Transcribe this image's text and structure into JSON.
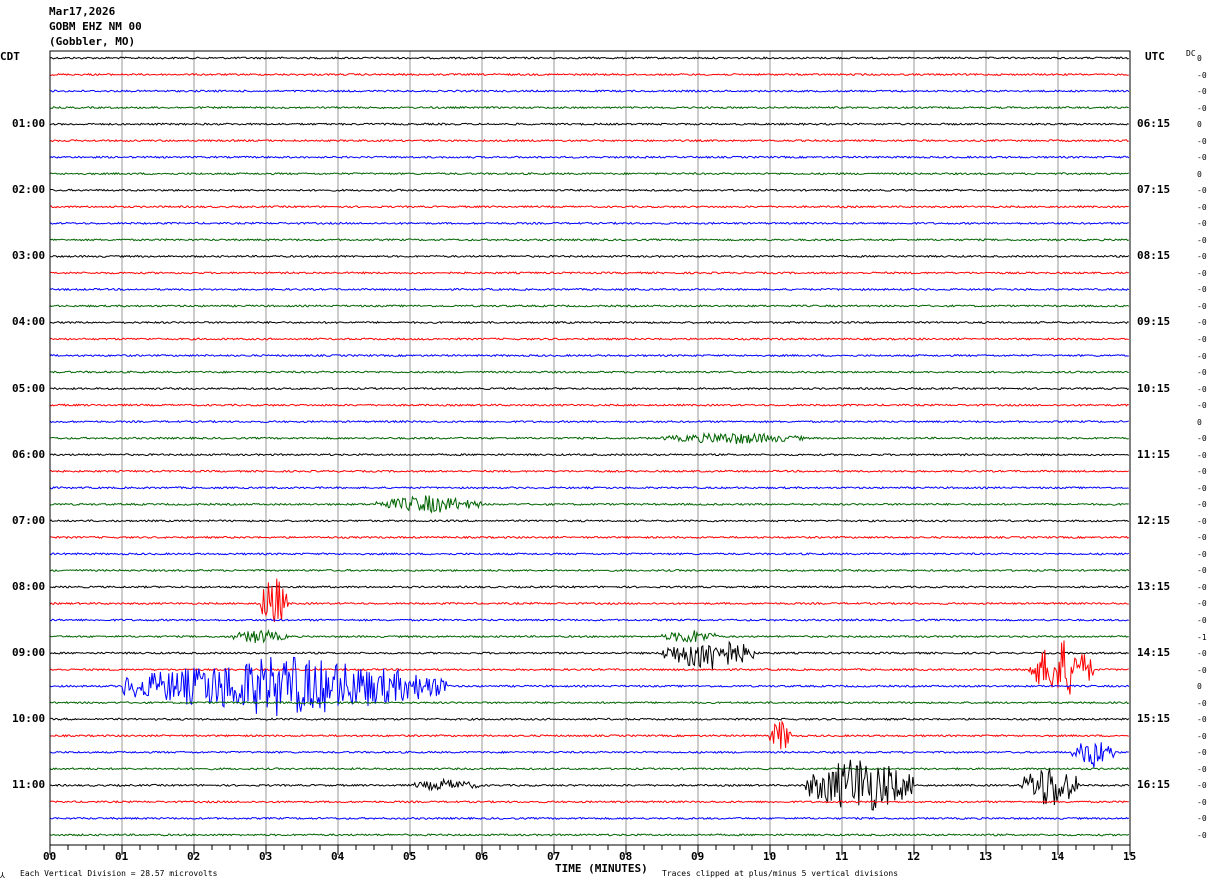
{
  "header": {
    "date": "Mar17,2026",
    "station": "GOBM EHZ NM 00",
    "location": "(Gobbler, MO)"
  },
  "left_label": "CDT",
  "right_label": "UTC",
  "dc_label": "DC",
  "footer": {
    "scale": "Each Vertical Division =   28.57 microvolts",
    "xlabel": "TIME (MINUTES)",
    "clip": "Traces clipped at plus/minus 5 vertical divisions"
  },
  "colors": {
    "cycle": [
      "#000000",
      "#ff0000",
      "#0000ff",
      "#006400"
    ]
  },
  "chart_data": {
    "type": "line",
    "title": "GOBM EHZ NM 00",
    "xlabel": "TIME (MINUTES)",
    "xlim": [
      0,
      15
    ],
    "x_ticks": [
      "00",
      "01",
      "02",
      "03",
      "04",
      "05",
      "06",
      "07",
      "08",
      "09",
      "10",
      "11",
      "12",
      "13",
      "14",
      "15"
    ],
    "trace_count": 48,
    "minutes_per_trace": 15,
    "left_hour_labels": [
      "01:00",
      "02:00",
      "03:00",
      "04:00",
      "05:00",
      "06:00",
      "07:00",
      "08:00",
      "09:00",
      "10:00",
      "11:00"
    ],
    "right_hour_labels": [
      "06:15",
      "07:15",
      "08:15",
      "09:15",
      "10:15",
      "11:15",
      "12:15",
      "13:15",
      "14:15",
      "15:15",
      "16:15"
    ],
    "hour_label_trace_index": [
      4,
      8,
      12,
      16,
      20,
      24,
      28,
      32,
      36,
      40,
      44
    ],
    "dc_offsets": [
      "0",
      "-0",
      "-0",
      "-0",
      "0",
      "-0",
      "-0",
      "0",
      "-0",
      "-0",
      "-0",
      "-0",
      "-0",
      "-0",
      "-0",
      "-0",
      "-0",
      "-0",
      "-0",
      "-0",
      "-0",
      "-0",
      "0",
      "-0",
      "-0",
      "-0",
      "-0",
      "-0",
      "-0",
      "-0",
      "-0",
      "-0",
      "-0",
      "-0",
      "-0",
      "-1",
      "-0",
      "-0",
      "0",
      "-0",
      "-0",
      "-0",
      "-0",
      "-0",
      "-0",
      "-0",
      "-0",
      "-0"
    ],
    "events": [
      {
        "trace": 27,
        "start": 4.5,
        "end": 6.0,
        "amplitude": 1.5
      },
      {
        "trace": 23,
        "start": 8.5,
        "end": 10.5,
        "amplitude": 1.0
      },
      {
        "trace": 33,
        "start": 2.9,
        "end": 3.3,
        "amplitude": 5
      },
      {
        "trace": 35,
        "start": 2.5,
        "end": 3.3,
        "amplitude": 1.2
      },
      {
        "trace": 35,
        "start": 8.5,
        "end": 9.3,
        "amplitude": 1.2
      },
      {
        "trace": 36,
        "start": 8.5,
        "end": 9.8,
        "amplitude": 3
      },
      {
        "trace": 37,
        "start": 13.6,
        "end": 14.5,
        "amplitude": 5
      },
      {
        "trace": 38,
        "start": 1.0,
        "end": 5.5,
        "amplitude": 5
      },
      {
        "trace": 41,
        "start": 10.0,
        "end": 10.3,
        "amplitude": 3
      },
      {
        "trace": 42,
        "start": 14.2,
        "end": 14.8,
        "amplitude": 2.5
      },
      {
        "trace": 44,
        "start": 10.5,
        "end": 12.0,
        "amplitude": 5
      },
      {
        "trace": 44,
        "start": 13.5,
        "end": 14.3,
        "amplitude": 4
      },
      {
        "trace": 44,
        "start": 5.0,
        "end": 6.0,
        "amplitude": 1.0
      }
    ]
  }
}
